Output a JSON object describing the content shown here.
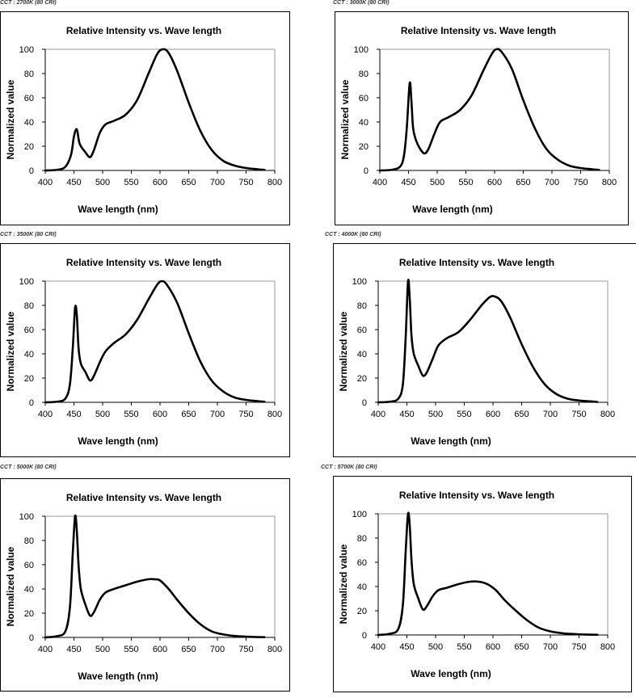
{
  "chart_data": [
    {
      "caption": "CCT : 2700K (80 CRI)",
      "type": "line",
      "title": "Relative Intensity vs. Wave length",
      "xlabel": "Wave length (nm)",
      "ylabel": "Normalized value",
      "xlim": [
        400,
        800
      ],
      "ylim": [
        0,
        100
      ],
      "xticks": [
        400,
        450,
        500,
        550,
        600,
        650,
        700,
        750,
        800
      ],
      "yticks": [
        0,
        20,
        40,
        60,
        80,
        100
      ],
      "grid": false,
      "series": [
        {
          "x": [
            400,
            420,
            435,
            445,
            450,
            455,
            460,
            470,
            478,
            485,
            495,
            505,
            520,
            540,
            560,
            580,
            595,
            605,
            615,
            630,
            650,
            670,
            690,
            710,
            730,
            750,
            770,
            782
          ],
          "y": [
            0,
            0.5,
            3,
            13,
            28,
            34,
            22,
            15,
            11,
            17,
            31,
            38,
            41,
            46,
            58,
            80,
            96,
            100,
            97,
            82,
            56,
            33,
            17,
            8,
            4,
            2,
            1,
            0.5
          ]
        }
      ]
    },
    {
      "caption": "CCT : 3000K (80 CRI)",
      "type": "line",
      "title": "Relative Intensity vs. Wave length",
      "xlabel": "Wave length (nm)",
      "ylabel": "Normalized value",
      "xlim": [
        400,
        800
      ],
      "ylim": [
        0,
        100
      ],
      "xticks": [
        400,
        450,
        500,
        550,
        600,
        650,
        700,
        750,
        800
      ],
      "yticks": [
        0,
        20,
        40,
        60,
        80,
        100
      ],
      "grid": false,
      "series": [
        {
          "x": [
            400,
            420,
            435,
            442,
            447,
            452,
            455,
            458,
            463,
            470,
            478,
            485,
            495,
            505,
            520,
            540,
            560,
            580,
            595,
            603,
            612,
            630,
            650,
            670,
            690,
            710,
            730,
            750,
            770,
            782
          ],
          "y": [
            0,
            0.5,
            3,
            12,
            35,
            72,
            58,
            35,
            25,
            18,
            14,
            18,
            30,
            40,
            44,
            50,
            62,
            82,
            96,
            100,
            98,
            84,
            58,
            35,
            18,
            9,
            4,
            2,
            1,
            0.5
          ]
        }
      ]
    },
    {
      "caption": "CCT : 3500K (80 CRI)",
      "type": "line",
      "title": "Relative Intensity vs. Wave length",
      "xlabel": "Wave length (nm)",
      "ylabel": "Normalized value",
      "xlim": [
        400,
        800
      ],
      "ylim": [
        0,
        100
      ],
      "xticks": [
        400,
        450,
        500,
        550,
        600,
        650,
        700,
        750,
        800
      ],
      "yticks": [
        0,
        20,
        40,
        60,
        80,
        100
      ],
      "grid": false,
      "series": [
        {
          "x": [
            400,
            420,
            435,
            443,
            448,
            452,
            455,
            458,
            462,
            470,
            478,
            485,
            495,
            505,
            520,
            540,
            560,
            580,
            595,
            603,
            612,
            630,
            650,
            670,
            690,
            710,
            730,
            750,
            770,
            782
          ],
          "y": [
            0,
            0.5,
            3,
            15,
            45,
            78,
            72,
            45,
            32,
            25,
            18,
            22,
            33,
            42,
            49,
            56,
            68,
            85,
            97,
            100,
            97,
            82,
            57,
            34,
            18,
            9,
            4,
            2,
            1,
            0.5
          ]
        }
      ]
    },
    {
      "caption": "CCT : 4000K (80 CRI)",
      "type": "line",
      "title": "Relative Intensity vs. Wave length",
      "xlabel": "Wave length (nm)",
      "ylabel": "Normalized value",
      "xlim": [
        400,
        800
      ],
      "ylim": [
        0,
        100
      ],
      "xticks": [
        400,
        450,
        500,
        550,
        600,
        650,
        700,
        750,
        800
      ],
      "yticks": [
        0,
        20,
        40,
        60,
        80,
        100
      ],
      "grid": false,
      "series": [
        {
          "x": [
            400,
            420,
            435,
            443,
            448,
            452,
            455,
            458,
            462,
            470,
            478,
            485,
            495,
            505,
            520,
            540,
            560,
            580,
            595,
            605,
            615,
            630,
            650,
            670,
            690,
            710,
            730,
            750,
            770,
            782
          ],
          "y": [
            0,
            0.5,
            3,
            15,
            55,
            100,
            85,
            55,
            40,
            30,
            22,
            25,
            36,
            47,
            53,
            58,
            68,
            80,
            87,
            87,
            83,
            70,
            48,
            29,
            15,
            7,
            3,
            1.5,
            0.8,
            0.3
          ]
        }
      ]
    },
    {
      "caption": "CCT : 5000K (80 CRI)",
      "type": "line",
      "title": "Relative Intensity vs. Wave length",
      "xlabel": "Wave length (nm)",
      "ylabel": "Normalized value",
      "xlim": [
        400,
        800
      ],
      "ylim": [
        0,
        100
      ],
      "xticks": [
        400,
        450,
        500,
        550,
        600,
        650,
        700,
        750,
        800
      ],
      "yticks": [
        0,
        20,
        40,
        60,
        80,
        100
      ],
      "grid": false,
      "series": [
        {
          "x": [
            400,
            420,
            435,
            443,
            448,
            452,
            455,
            458,
            462,
            470,
            478,
            485,
            495,
            505,
            520,
            540,
            560,
            580,
            590,
            600,
            615,
            630,
            650,
            670,
            690,
            710,
            730,
            750,
            770,
            782
          ],
          "y": [
            0,
            1,
            5,
            25,
            70,
            100,
            88,
            60,
            40,
            27,
            18,
            21,
            31,
            37,
            40,
            43,
            46,
            48,
            48,
            47,
            40,
            31,
            20,
            11,
            5,
            2.5,
            1.2,
            0.6,
            0.3,
            0.2
          ]
        }
      ]
    },
    {
      "caption": "CCT : 5700K (80 CRI)",
      "type": "line",
      "title": "Relative Intensity vs. Wave length",
      "xlabel": "Wave length (nm)",
      "ylabel": "Normalized value",
      "xlim": [
        400,
        800
      ],
      "ylim": [
        0,
        100
      ],
      "xticks": [
        400,
        450,
        500,
        550,
        600,
        650,
        700,
        750,
        800
      ],
      "yticks": [
        0,
        20,
        40,
        60,
        80,
        100
      ],
      "grid": false,
      "series": [
        {
          "x": [
            400,
            420,
            435,
            443,
            448,
            452,
            455,
            458,
            462,
            470,
            478,
            485,
            495,
            505,
            520,
            540,
            560,
            575,
            590,
            605,
            620,
            640,
            660,
            680,
            700,
            720,
            740,
            760,
            782
          ],
          "y": [
            0,
            1,
            5,
            25,
            70,
            100,
            90,
            62,
            42,
            30,
            21,
            24,
            32,
            37,
            39,
            42,
            44,
            44,
            42,
            37,
            29,
            20,
            12,
            6,
            3,
            1.5,
            0.8,
            0.4,
            0.2
          ]
        }
      ]
    }
  ]
}
